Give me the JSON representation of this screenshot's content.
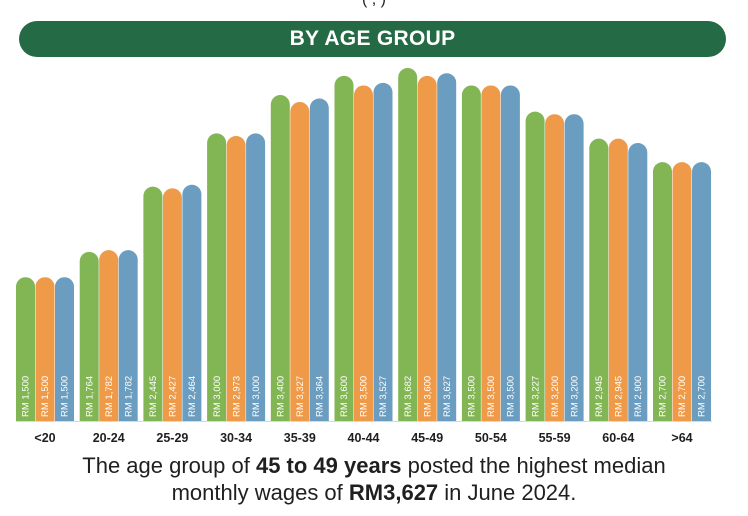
{
  "header": {
    "title": "BY AGE GROUP"
  },
  "top_cut_text": "( , )",
  "chart_data": {
    "type": "bar",
    "categories": [
      "<20",
      "20-24",
      "25-29",
      "30-34",
      "35-39",
      "40-44",
      "45-49",
      "50-54",
      "55-59",
      "60-64",
      ">64"
    ],
    "series": [
      {
        "values": [
          1500,
          1764,
          2445,
          3000,
          3400,
          3600,
          3682,
          3500,
          3227,
          2945,
          2700
        ],
        "labels": [
          "RM 1,500",
          "RM 1,764",
          "RM 2,445",
          "RM 3,000",
          "RM 3,400",
          "RM 3,600",
          "RM 3,682",
          "RM 3,500",
          "RM 3,227",
          "RM 2,945",
          "RM 2,700"
        ],
        "color": "#82b655"
      },
      {
        "values": [
          1500,
          1782,
          2427,
          2973,
          3327,
          3500,
          3600,
          3500,
          3200,
          2945,
          2700
        ],
        "labels": [
          "RM 1,500",
          "RM 1,782",
          "RM 2,427",
          "RM 2,973",
          "RM 3,327",
          "RM 3,500",
          "RM 3,600",
          "RM 3,500",
          "RM 3,200",
          "RM 2,945",
          "RM 2,700"
        ],
        "color": "#ef9a48"
      },
      {
        "values": [
          1500,
          1782,
          2464,
          3000,
          3364,
          3527,
          3627,
          3500,
          3200,
          2900,
          2700
        ],
        "labels": [
          "RM 1,500",
          "RM 1,782",
          "RM 2,464",
          "RM 3,000",
          "RM 3,364",
          "RM 3,527",
          "RM 3,627",
          "RM 3,500",
          "RM 3,200",
          "RM 2,900",
          "RM 2,700"
        ],
        "color": "#6b9dc0"
      }
    ],
    "ylim": [
      0,
      3682
    ],
    "grid": false,
    "legend": "none"
  },
  "caption": {
    "line1_pre": "The age group of ",
    "line1_bold": "45 to 49 years",
    "line1_post": " posted the highest median",
    "line2_pre": "monthly wages of ",
    "line2_bold": "RM3,627",
    "line2_post": " in June 2024."
  }
}
